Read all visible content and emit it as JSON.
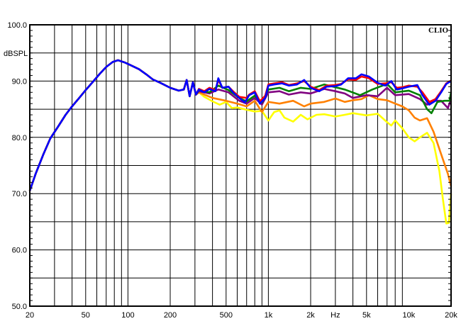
{
  "chart_data": {
    "type": "line",
    "title": "",
    "brand": "CLIO",
    "ylabel": "dBSPL",
    "xlabel": "Hz",
    "xscale": "log",
    "xlim": [
      20,
      20000
    ],
    "ylim": [
      50,
      100
    ],
    "grid": true,
    "y_ticks": [
      "100.0",
      "90.0",
      "80.0",
      "70.0",
      "60.0",
      "50.0"
    ],
    "x_ticks": [
      {
        "f": 20,
        "label": "20"
      },
      {
        "f": 50,
        "label": "50"
      },
      {
        "f": 100,
        "label": "100"
      },
      {
        "f": 200,
        "label": "200"
      },
      {
        "f": 500,
        "label": "500"
      },
      {
        "f": 1000,
        "label": "1k"
      },
      {
        "f": 2000,
        "label": "2k"
      },
      {
        "f": 3000,
        "label": "Hz"
      },
      {
        "f": 5000,
        "label": "5k"
      },
      {
        "f": 10000,
        "label": "10k"
      },
      {
        "f": 20000,
        "label": "20k"
      }
    ],
    "shared_low": [
      [
        20,
        70.5
      ],
      [
        22,
        73.5
      ],
      [
        25,
        77
      ],
      [
        28,
        79.8
      ],
      [
        32,
        82
      ],
      [
        36,
        84
      ],
      [
        40,
        85.5
      ],
      [
        45,
        87
      ],
      [
        50,
        88.4
      ],
      [
        56,
        89.8
      ],
      [
        63,
        91.3
      ],
      [
        70,
        92.5
      ],
      [
        78,
        93.4
      ],
      [
        85,
        93.7
      ],
      [
        95,
        93.3
      ],
      [
        105,
        92.8
      ],
      [
        120,
        92.1
      ],
      [
        135,
        91.2
      ],
      [
        150,
        90.3
      ],
      [
        170,
        89.7
      ],
      [
        200,
        88.8
      ],
      [
        230,
        88.3
      ],
      [
        250,
        88.5
      ],
      [
        262,
        90.2
      ],
      [
        275,
        87.3
      ],
      [
        290,
        89.8
      ],
      [
        305,
        87.6
      ]
    ],
    "series": [
      {
        "color": "#ffff00",
        "points": [
          [
            320,
            88
          ],
          [
            350,
            87.2
          ],
          [
            400,
            86.4
          ],
          [
            450,
            85.8
          ],
          [
            500,
            86.3
          ],
          [
            550,
            85.2
          ],
          [
            600,
            85.3
          ],
          [
            700,
            84.9
          ],
          [
            800,
            84.6
          ],
          [
            900,
            84.7
          ],
          [
            1000,
            83
          ],
          [
            1100,
            84.5
          ],
          [
            1200,
            84.8
          ],
          [
            1300,
            83.5
          ],
          [
            1500,
            82.8
          ],
          [
            1700,
            84
          ],
          [
            1900,
            83.2
          ],
          [
            2200,
            84
          ],
          [
            2500,
            84.1
          ],
          [
            3000,
            83.7
          ],
          [
            3500,
            84
          ],
          [
            4000,
            84.3
          ],
          [
            5000,
            83.9
          ],
          [
            6000,
            84.2
          ],
          [
            7000,
            82.7
          ],
          [
            7500,
            82.1
          ],
          [
            8000,
            83
          ],
          [
            9000,
            81.6
          ],
          [
            10000,
            80
          ],
          [
            11000,
            79.3
          ],
          [
            12000,
            80
          ],
          [
            13500,
            80.8
          ],
          [
            15000,
            79
          ],
          [
            16500,
            74
          ],
          [
            17500,
            69
          ],
          [
            18500,
            64.7
          ],
          [
            19300,
            64.8
          ],
          [
            20000,
            70
          ]
        ]
      },
      {
        "color": "#ff8000",
        "points": [
          [
            320,
            88
          ],
          [
            400,
            87
          ],
          [
            500,
            86.5
          ],
          [
            600,
            86
          ],
          [
            700,
            85.5
          ],
          [
            800,
            86.5
          ],
          [
            900,
            84.5
          ],
          [
            1000,
            86.3
          ],
          [
            1200,
            86
          ],
          [
            1500,
            86.5
          ],
          [
            1800,
            85.5
          ],
          [
            2000,
            86
          ],
          [
            2500,
            86.3
          ],
          [
            3000,
            86.9
          ],
          [
            3500,
            86.3
          ],
          [
            4000,
            86.6
          ],
          [
            4600,
            86.8
          ],
          [
            5200,
            87.5
          ],
          [
            6000,
            86.8
          ],
          [
            7000,
            86.6
          ],
          [
            8000,
            86
          ],
          [
            9000,
            85.5
          ],
          [
            10000,
            84.8
          ],
          [
            11000,
            83.5
          ],
          [
            12000,
            83
          ],
          [
            13500,
            83.4
          ],
          [
            15000,
            81
          ],
          [
            17000,
            77
          ],
          [
            19000,
            73.5
          ],
          [
            20000,
            71.3
          ]
        ]
      },
      {
        "color": "#800080",
        "points": [
          [
            320,
            88.2
          ],
          [
            380,
            87.8
          ],
          [
            440,
            88.5
          ],
          [
            520,
            88
          ],
          [
            620,
            86.5
          ],
          [
            700,
            86
          ],
          [
            800,
            87
          ],
          [
            900,
            85.8
          ],
          [
            1000,
            88
          ],
          [
            1200,
            88.2
          ],
          [
            1400,
            87.6
          ],
          [
            1700,
            88
          ],
          [
            2000,
            87.8
          ],
          [
            2500,
            88.6
          ],
          [
            3000,
            88.2
          ],
          [
            3500,
            87.8
          ],
          [
            4000,
            87
          ],
          [
            5000,
            87.5
          ],
          [
            6000,
            87.3
          ],
          [
            7000,
            88.8
          ],
          [
            8000,
            87.5
          ],
          [
            10000,
            87.7
          ],
          [
            12000,
            86.8
          ],
          [
            13500,
            85.8
          ],
          [
            15000,
            86.5
          ],
          [
            17000,
            86.5
          ],
          [
            19000,
            85.2
          ],
          [
            20000,
            86.8
          ]
        ]
      },
      {
        "color": "#008000",
        "points": [
          [
            320,
            88.4
          ],
          [
            380,
            88
          ],
          [
            440,
            89.2
          ],
          [
            520,
            88.4
          ],
          [
            620,
            87
          ],
          [
            700,
            86.4
          ],
          [
            800,
            87.4
          ],
          [
            900,
            86.2
          ],
          [
            1000,
            88.5
          ],
          [
            1200,
            88.8
          ],
          [
            1400,
            88.2
          ],
          [
            1700,
            88.8
          ],
          [
            2000,
            88.6
          ],
          [
            2500,
            89.4
          ],
          [
            3000,
            88.9
          ],
          [
            3500,
            88.5
          ],
          [
            4500,
            87.5
          ],
          [
            5500,
            88.5
          ],
          [
            7000,
            89.5
          ],
          [
            8000,
            88
          ],
          [
            10000,
            88.3
          ],
          [
            12000,
            87.5
          ],
          [
            13500,
            85
          ],
          [
            14500,
            84.3
          ],
          [
            16000,
            86.3
          ],
          [
            18000,
            86.5
          ],
          [
            19500,
            86.5
          ],
          [
            20000,
            88
          ]
        ]
      },
      {
        "color": "#ff0000",
        "points": [
          [
            320,
            88.6
          ],
          [
            350,
            88.2
          ],
          [
            380,
            88.8
          ],
          [
            420,
            88.4
          ],
          [
            440,
            90.2
          ],
          [
            470,
            88.8
          ],
          [
            520,
            89
          ],
          [
            560,
            88.2
          ],
          [
            620,
            87.2
          ],
          [
            700,
            87
          ],
          [
            730,
            87.6
          ],
          [
            800,
            88.2
          ],
          [
            870,
            86.4
          ],
          [
            950,
            87.4
          ],
          [
            1000,
            89.4
          ],
          [
            1100,
            89.6
          ],
          [
            1250,
            89.8
          ],
          [
            1400,
            89.3
          ],
          [
            1600,
            89.6
          ],
          [
            1800,
            90
          ],
          [
            2000,
            89
          ],
          [
            2300,
            88.4
          ],
          [
            2600,
            89.2
          ],
          [
            3000,
            89.3
          ],
          [
            3300,
            89.5
          ],
          [
            3700,
            90.3
          ],
          [
            4200,
            90.2
          ],
          [
            4600,
            90.8
          ],
          [
            5200,
            90.5
          ],
          [
            6000,
            89.5
          ],
          [
            6800,
            89.6
          ],
          [
            7500,
            89.8
          ],
          [
            8200,
            88.8
          ],
          [
            9000,
            88.9
          ],
          [
            10000,
            89.2
          ],
          [
            11500,
            89
          ],
          [
            12500,
            88
          ],
          [
            14000,
            86.3
          ],
          [
            15500,
            86.8
          ],
          [
            17000,
            88.2
          ],
          [
            18500,
            89.6
          ],
          [
            20000,
            90.1
          ]
        ]
      },
      {
        "color": "#0000ff",
        "points": [
          [
            320,
            88.5
          ],
          [
            350,
            88
          ],
          [
            380,
            88.6
          ],
          [
            420,
            88.2
          ],
          [
            440,
            90.5
          ],
          [
            470,
            88.8
          ],
          [
            520,
            89
          ],
          [
            560,
            88
          ],
          [
            620,
            87
          ],
          [
            680,
            86.2
          ],
          [
            730,
            87.5
          ],
          [
            800,
            88
          ],
          [
            870,
            86
          ],
          [
            950,
            87
          ],
          [
            1000,
            89.2
          ],
          [
            1100,
            89.4
          ],
          [
            1250,
            89.6
          ],
          [
            1400,
            89.2
          ],
          [
            1600,
            89.4
          ],
          [
            1800,
            90.2
          ],
          [
            2000,
            88.8
          ],
          [
            2300,
            88.2
          ],
          [
            2600,
            89
          ],
          [
            3000,
            89.1
          ],
          [
            3300,
            89.4
          ],
          [
            3700,
            90.5
          ],
          [
            4200,
            90.5
          ],
          [
            4600,
            91.2
          ],
          [
            5200,
            90.8
          ],
          [
            6000,
            89.7
          ],
          [
            6800,
            89.2
          ],
          [
            7500,
            90
          ],
          [
            8200,
            88.5
          ],
          [
            9000,
            88.7
          ],
          [
            10000,
            89
          ],
          [
            11500,
            89.3
          ],
          [
            12500,
            87.5
          ],
          [
            14000,
            85.8
          ],
          [
            15500,
            86.5
          ],
          [
            17000,
            88
          ],
          [
            18500,
            89.5
          ],
          [
            20000,
            90
          ]
        ]
      }
    ]
  }
}
